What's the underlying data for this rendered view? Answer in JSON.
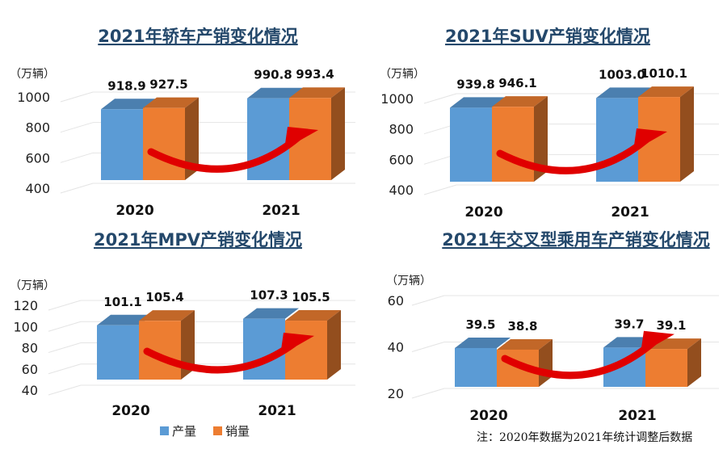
{
  "legend": {
    "production": "产量",
    "sales": "销量"
  },
  "colors": {
    "production": "#5b9bd5",
    "sales": "#ed7d31",
    "arrow": "#e00000",
    "title": "#24486b"
  },
  "note": "注：2020年数据为2021年统计调整后数据",
  "chart_data": [
    {
      "type": "bar",
      "title": "2021年轿车产销变化情况",
      "unit": "（万辆）",
      "categories": [
        "2020",
        "2021"
      ],
      "yticks": [
        "1000",
        "800",
        "600",
        "400"
      ],
      "ylim": [
        400,
        1000
      ],
      "series": [
        {
          "name": "产量",
          "values": [
            918.9,
            990.8
          ],
          "labels": [
            "918.9",
            "990.8"
          ]
        },
        {
          "name": "销量",
          "values": [
            927.5,
            993.4
          ],
          "labels": [
            "927.5",
            "993.4"
          ]
        }
      ]
    },
    {
      "type": "bar",
      "title": "2021年SUV产销变化情况",
      "unit": "（万辆）",
      "categories": [
        "2020",
        "2021"
      ],
      "yticks": [
        "1000",
        "800",
        "600",
        "400"
      ],
      "ylim": [
        400,
        1000
      ],
      "series": [
        {
          "name": "产量",
          "values": [
            939.8,
            1003.0
          ],
          "labels": [
            "939.8",
            "1003.0"
          ]
        },
        {
          "name": "销量",
          "values": [
            946.1,
            1010.1
          ],
          "labels": [
            "946.1",
            "1010.1"
          ]
        }
      ]
    },
    {
      "type": "bar",
      "title": "2021年MPV产销变化情况",
      "unit": "（万辆）",
      "categories": [
        "2020",
        "2021"
      ],
      "yticks": [
        "120",
        "100",
        "80",
        "60",
        "40"
      ],
      "ylim": [
        40,
        120
      ],
      "series": [
        {
          "name": "产量",
          "values": [
            101.1,
            107.3
          ],
          "labels": [
            "101.1",
            "107.3"
          ]
        },
        {
          "name": "销量",
          "values": [
            105.4,
            105.5
          ],
          "labels": [
            "105.4",
            "105.5"
          ]
        }
      ]
    },
    {
      "type": "bar",
      "title": "2021年交叉型乘用车产销变化情况",
      "unit": "（万辆）",
      "categories": [
        "2020",
        "2021"
      ],
      "yticks": [
        "60",
        "40",
        "20"
      ],
      "ylim": [
        20,
        60
      ],
      "series": [
        {
          "name": "产量",
          "values": [
            39.5,
            39.7
          ],
          "labels": [
            "39.5",
            "39.7"
          ]
        },
        {
          "name": "销量",
          "values": [
            38.8,
            39.1
          ],
          "labels": [
            "38.8",
            "39.1"
          ]
        }
      ]
    }
  ]
}
